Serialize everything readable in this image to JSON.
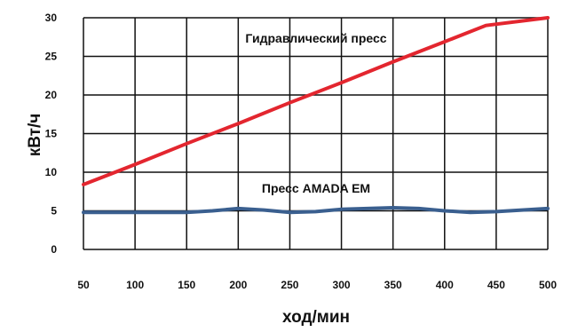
{
  "chart_data": {
    "type": "line",
    "xlabel": "ход/мин",
    "ylabel": "кВт/ч",
    "xlim": [
      50,
      500
    ],
    "ylim": [
      0,
      30
    ],
    "x_ticks": [
      "50",
      "100",
      "150",
      "200",
      "250",
      "300",
      "350",
      "400",
      "450",
      "500"
    ],
    "y_ticks": [
      "0",
      "5",
      "10",
      "15",
      "20",
      "25",
      "30"
    ],
    "x_tick_values": [
      50,
      100,
      150,
      200,
      250,
      300,
      350,
      400,
      450,
      500
    ],
    "y_tick_values": [
      0,
      5,
      10,
      15,
      20,
      25,
      30
    ],
    "grid": true,
    "legend": "inline labels",
    "series": [
      {
        "name": "Гидравлический пресс",
        "color": "#e3262f",
        "x": [
          50,
          100,
          150,
          200,
          250,
          300,
          350,
          400,
          440,
          500
        ],
        "values": [
          8.4,
          11.0,
          13.7,
          16.3,
          19.0,
          21.6,
          24.3,
          26.9,
          29.0,
          30.0
        ]
      },
      {
        "name": "Пресс AMADA EM",
        "color": "#3a5f8f",
        "x": [
          50,
          100,
          150,
          175,
          200,
          225,
          250,
          275,
          300,
          325,
          350,
          375,
          400,
          425,
          450,
          475,
          500
        ],
        "values": [
          4.8,
          4.8,
          4.8,
          5.0,
          5.3,
          5.1,
          4.8,
          4.9,
          5.2,
          5.3,
          5.4,
          5.3,
          5.0,
          4.8,
          4.9,
          5.1,
          5.3
        ]
      }
    ]
  }
}
